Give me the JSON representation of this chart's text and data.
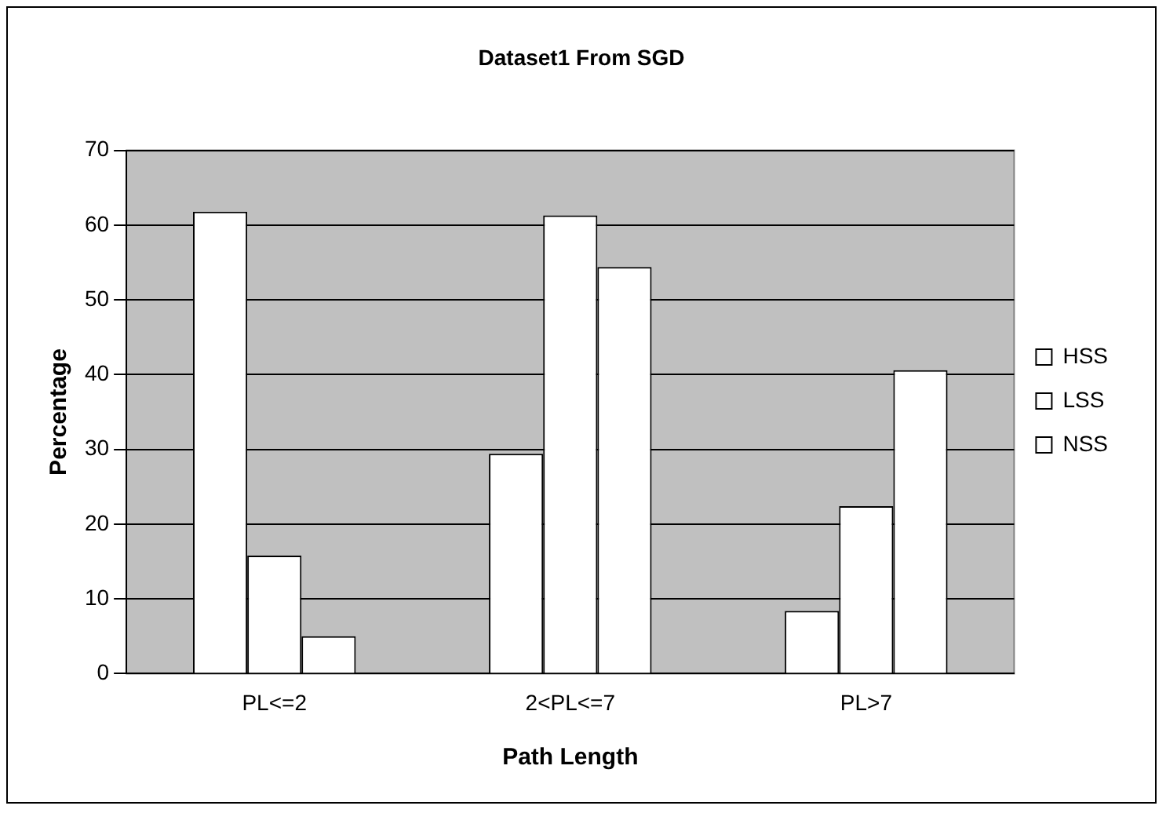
{
  "chart_data": {
    "type": "bar",
    "title": "Dataset1 From SGD",
    "xlabel": "Path Length",
    "ylabel": "Percentage",
    "categories": [
      "PL<=2",
      "2<PL<=7",
      "PL>7"
    ],
    "series": [
      {
        "name": "HSS",
        "color": "#ffffff",
        "values": [
          61.8,
          29.4,
          8.4
        ]
      },
      {
        "name": "LSS",
        "color": "#ffffff",
        "values": [
          15.8,
          61.3,
          22.4
        ]
      },
      {
        "name": "NSS",
        "color": "#ffffff",
        "values": [
          5.0,
          54.4,
          40.6
        ]
      }
    ],
    "ylim": [
      0,
      70
    ],
    "yticks": [
      0,
      10,
      20,
      30,
      40,
      50,
      60,
      70
    ],
    "grid": "y",
    "legend": "right"
  }
}
